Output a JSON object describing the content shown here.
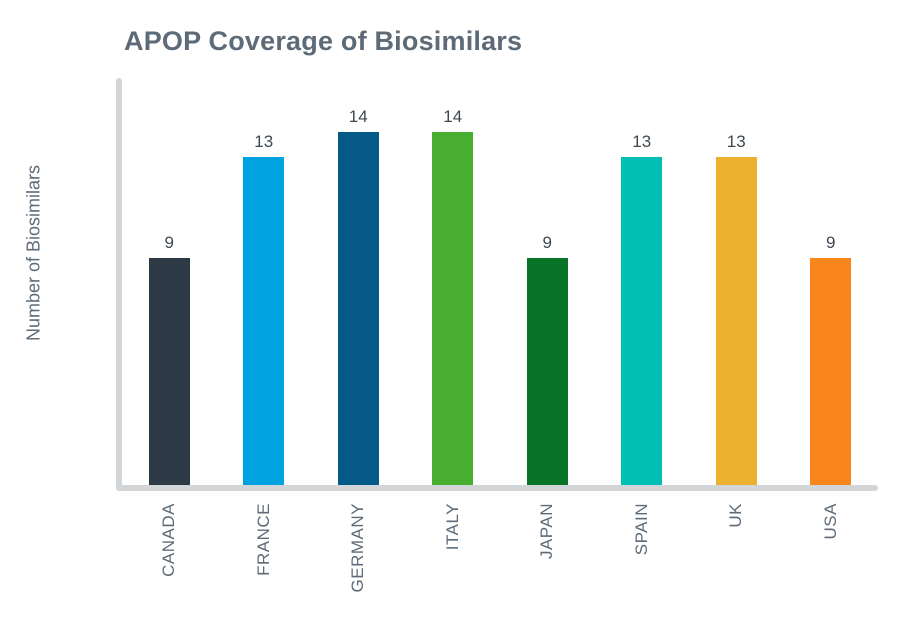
{
  "chart_data": {
    "type": "bar",
    "title": "APOP Coverage of Biosimilars",
    "xlabel": "",
    "ylabel": "Number of Biosimilars",
    "categories": [
      "CANADA",
      "FRANCE",
      "GERMANY",
      "ITALY",
      "JAPAN",
      "SPAIN",
      "UK",
      "USA"
    ],
    "values": [
      9,
      13,
      14,
      14,
      9,
      13,
      13,
      9
    ],
    "bar_colors": [
      "#2d3a45",
      "#00a3e0",
      "#055987",
      "#47ae30",
      "#077427",
      "#00bfb3",
      "#ecb12e",
      "#f9851d"
    ],
    "value_labels_shown": true,
    "grid": false,
    "legend": "none",
    "ylim": [
      0,
      16
    ],
    "colors": {
      "title": "#5d6b78",
      "axis_line": "#d3d6d9",
      "tick_label": "#5d6b78",
      "value_label": "#3d4852",
      "background": "#ffffff"
    }
  }
}
